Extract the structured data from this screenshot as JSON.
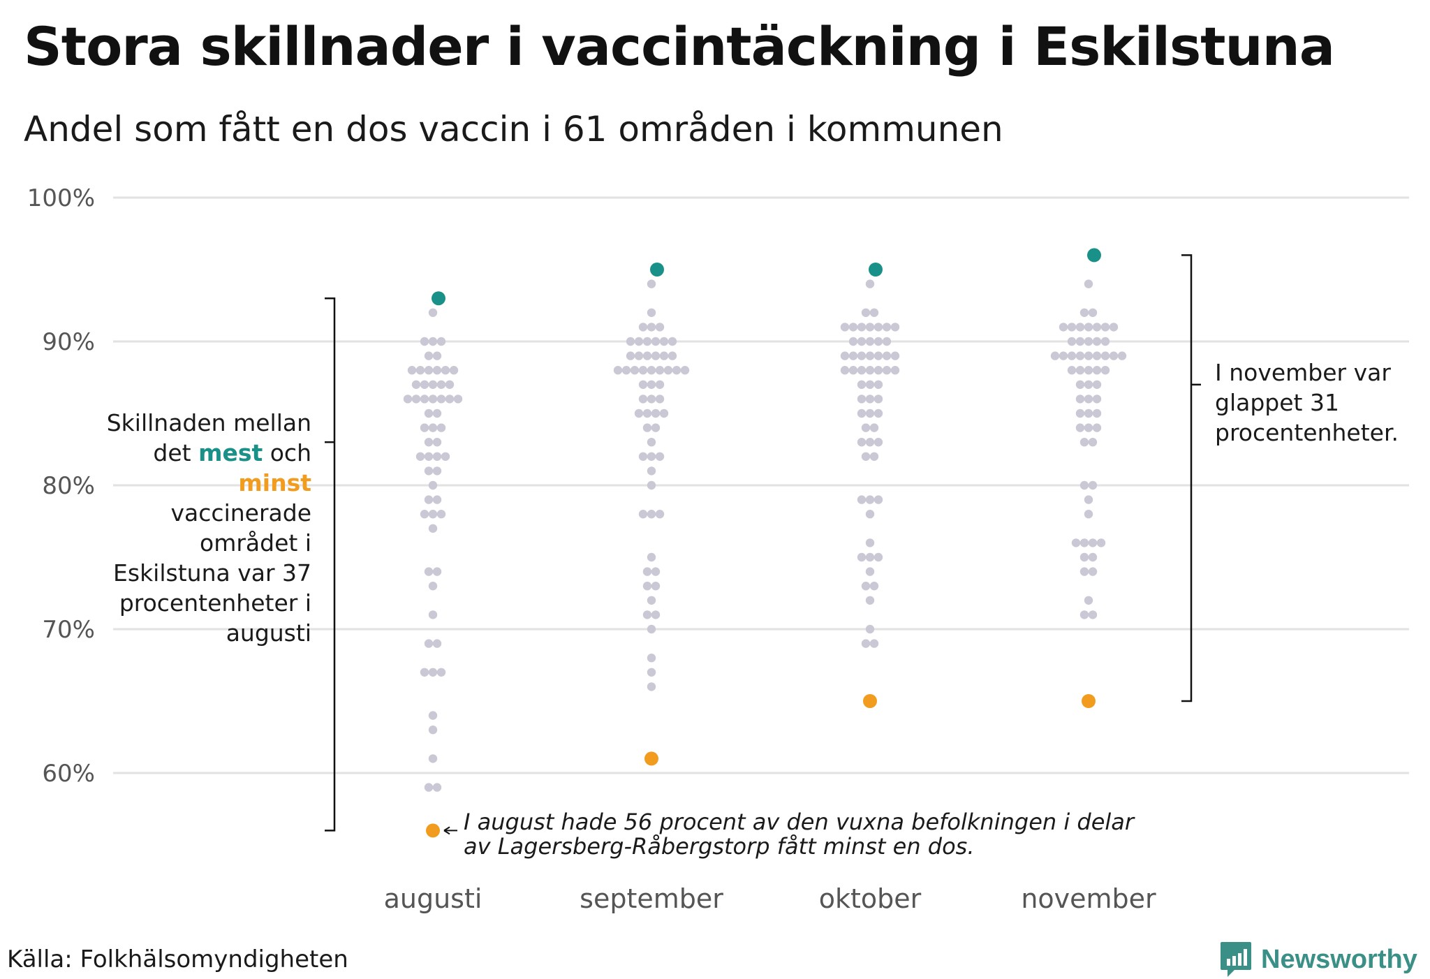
{
  "title": "Stora skillnader i vaccintäckning i Eskilstuna",
  "subtitle": "Andel som fått en dos vaccin i 61 områden i kommunen",
  "source": "Källa: Folkhälsomyndigheten",
  "brand": "Newsworthy",
  "notes": {
    "left_1": "Skillnaden mellan det ",
    "mest": "mest",
    "left_2": " och ",
    "minst": "minst",
    "left_3": " vaccinerade området i Eskilstuna var 37 procentenheter i augusti",
    "right": "I november var glappet 31 procentenheter.",
    "annotation": "I august hade 56 procent av den vuxna befolkningen i delar av Lagersberg-Råbergstorp fått minst en dos."
  },
  "colors": {
    "dot": "#c9c8d4",
    "max": "#1a9188",
    "min": "#f29c1f",
    "grid": "#e2e2e2",
    "axis_text": "#555555"
  },
  "chart_data": {
    "type": "scatter",
    "subtype": "beeswarm",
    "title": "Stora skillnader i vaccintäckning i Eskilstuna",
    "ylabel": "",
    "ylim": [
      55,
      100
    ],
    "yticks": [
      60,
      70,
      80,
      90,
      100
    ],
    "ytick_labels": [
      "60%",
      "70%",
      "80%",
      "90%",
      "100%"
    ],
    "categories": [
      "augusti",
      "september",
      "oktober",
      "november"
    ],
    "series": [
      {
        "name": "augusti",
        "max": 93,
        "min": 56,
        "values": [
          92,
          90,
          90,
          90,
          89,
          89,
          88,
          88,
          88,
          88,
          88,
          88,
          87,
          87,
          87,
          87,
          87,
          86,
          86,
          86,
          86,
          86,
          86,
          86,
          85,
          85,
          84,
          84,
          84,
          83,
          83,
          82,
          82,
          82,
          82,
          81,
          81,
          80,
          79,
          79,
          78,
          78,
          78,
          77,
          74,
          74,
          73,
          71,
          69,
          69,
          67,
          67,
          67,
          64,
          63,
          61,
          59,
          59
        ]
      },
      {
        "name": "september",
        "max": 95,
        "min": 61,
        "values": [
          94,
          92,
          91,
          91,
          91,
          90,
          90,
          90,
          90,
          90,
          90,
          89,
          89,
          89,
          89,
          89,
          89,
          88,
          88,
          88,
          88,
          88,
          88,
          88,
          88,
          88,
          87,
          87,
          87,
          86,
          86,
          86,
          85,
          85,
          85,
          85,
          84,
          84,
          83,
          82,
          82,
          82,
          81,
          80,
          78,
          78,
          78,
          75,
          74,
          74,
          73,
          73,
          72,
          71,
          71,
          70,
          68,
          67,
          66
        ]
      },
      {
        "name": "oktober",
        "max": 95,
        "min": 65,
        "values": [
          94,
          92,
          92,
          91,
          91,
          91,
          91,
          91,
          91,
          91,
          90,
          90,
          90,
          90,
          90,
          89,
          89,
          89,
          89,
          89,
          89,
          89,
          88,
          88,
          88,
          88,
          88,
          88,
          88,
          87,
          87,
          87,
          86,
          86,
          86,
          85,
          85,
          85,
          84,
          84,
          83,
          83,
          83,
          82,
          82,
          79,
          79,
          79,
          78,
          76,
          75,
          75,
          75,
          74,
          73,
          73,
          72,
          70,
          69,
          69
        ]
      },
      {
        "name": "november",
        "max": 96,
        "min": 65,
        "values": [
          94,
          92,
          92,
          91,
          91,
          91,
          91,
          91,
          91,
          91,
          90,
          90,
          90,
          90,
          90,
          89,
          89,
          89,
          89,
          89,
          89,
          89,
          89,
          89,
          88,
          88,
          88,
          88,
          88,
          87,
          87,
          87,
          86,
          86,
          86,
          85,
          85,
          85,
          84,
          84,
          84,
          83,
          83,
          80,
          80,
          79,
          78,
          76,
          76,
          76,
          76,
          75,
          75,
          74,
          74,
          72,
          71,
          71
        ]
      }
    ]
  }
}
